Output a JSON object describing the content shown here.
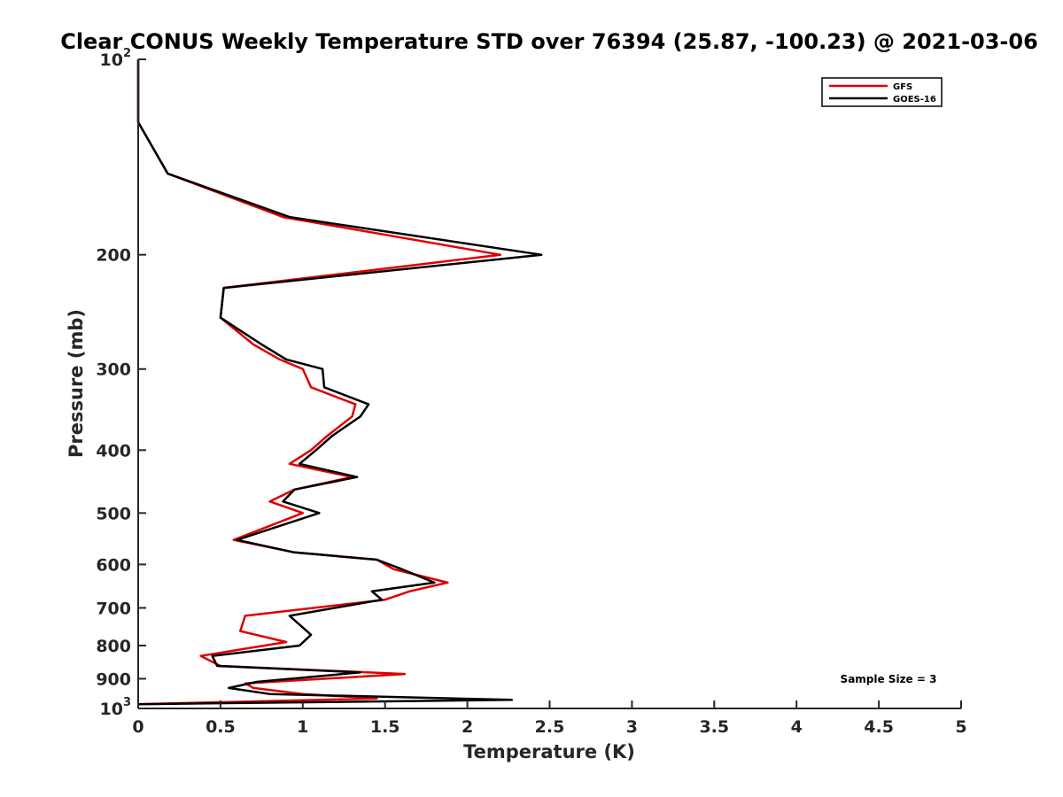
{
  "chart_data": {
    "type": "line",
    "title": "Clear CONUS Weekly Temperature STD over 76394 (25.87, -100.23) @ 2021-03-06",
    "xlabel": "Temperature (K)",
    "ylabel": "Pressure (mb)",
    "xlim": [
      0,
      5
    ],
    "ylim": [
      100,
      1000
    ],
    "y_scale": "log",
    "y_reversed": true,
    "xticks": [
      "0",
      "0.5",
      "1",
      "1.5",
      "2",
      "2.5",
      "3",
      "3.5",
      "4",
      "4.5",
      "5"
    ],
    "yticks": [
      {
        "value": 100,
        "base": "10",
        "exp": "2"
      },
      {
        "value": 200,
        "label": "200"
      },
      {
        "value": 300,
        "label": "300"
      },
      {
        "value": 400,
        "label": "400"
      },
      {
        "value": 500,
        "label": "500"
      },
      {
        "value": 600,
        "label": "600"
      },
      {
        "value": 700,
        "label": "700"
      },
      {
        "value": 800,
        "label": "800"
      },
      {
        "value": 900,
        "label": "900"
      },
      {
        "value": 1000,
        "base": "10",
        "exp": "3"
      }
    ],
    "legend_position": "top-right",
    "annotation": "Sample Size = 3",
    "series": [
      {
        "name": "GFS",
        "color": "#e00000",
        "points": [
          [
            0,
            100
          ],
          [
            0,
            125
          ],
          [
            0.18,
            150
          ],
          [
            0.88,
            175
          ],
          [
            2.2,
            200
          ],
          [
            0.52,
            225
          ],
          [
            0.5,
            250
          ],
          [
            0.7,
            275
          ],
          [
            0.86,
            290
          ],
          [
            1.0,
            300
          ],
          [
            1.05,
            320
          ],
          [
            1.32,
            340
          ],
          [
            1.3,
            355
          ],
          [
            1.15,
            380
          ],
          [
            1.05,
            400
          ],
          [
            0.92,
            420
          ],
          [
            1.3,
            440
          ],
          [
            0.95,
            460
          ],
          [
            0.8,
            480
          ],
          [
            1.0,
            500
          ],
          [
            0.58,
            550
          ],
          [
            0.95,
            575
          ],
          [
            1.45,
            590
          ],
          [
            1.55,
            610
          ],
          [
            1.88,
            640
          ],
          [
            1.65,
            660
          ],
          [
            1.5,
            680
          ],
          [
            0.65,
            720
          ],
          [
            0.62,
            760
          ],
          [
            0.9,
            790
          ],
          [
            0.38,
            830
          ],
          [
            0.5,
            860
          ],
          [
            1.62,
            885
          ],
          [
            0.65,
            915
          ],
          [
            0.7,
            930
          ],
          [
            1.0,
            950
          ],
          [
            1.45,
            965
          ],
          [
            0,
            985
          ]
        ]
      },
      {
        "name": "GOES-16",
        "color": "#000000",
        "points": [
          [
            0,
            100
          ],
          [
            0,
            125
          ],
          [
            0.18,
            150
          ],
          [
            0.92,
            175
          ],
          [
            2.45,
            200
          ],
          [
            0.52,
            225
          ],
          [
            0.5,
            250
          ],
          [
            0.75,
            275
          ],
          [
            0.9,
            290
          ],
          [
            1.12,
            300
          ],
          [
            1.13,
            320
          ],
          [
            1.4,
            340
          ],
          [
            1.35,
            355
          ],
          [
            1.18,
            380
          ],
          [
            1.08,
            400
          ],
          [
            0.98,
            420
          ],
          [
            1.33,
            440
          ],
          [
            0.95,
            460
          ],
          [
            0.88,
            480
          ],
          [
            1.1,
            500
          ],
          [
            0.6,
            550
          ],
          [
            0.95,
            575
          ],
          [
            1.45,
            590
          ],
          [
            1.6,
            610
          ],
          [
            1.8,
            640
          ],
          [
            1.42,
            660
          ],
          [
            1.48,
            680
          ],
          [
            0.92,
            720
          ],
          [
            1.05,
            770
          ],
          [
            0.98,
            800
          ],
          [
            0.45,
            830
          ],
          [
            0.48,
            860
          ],
          [
            1.35,
            880
          ],
          [
            0.72,
            910
          ],
          [
            0.55,
            930
          ],
          [
            0.8,
            950
          ],
          [
            2.27,
            970
          ],
          [
            0,
            985
          ]
        ]
      }
    ]
  }
}
